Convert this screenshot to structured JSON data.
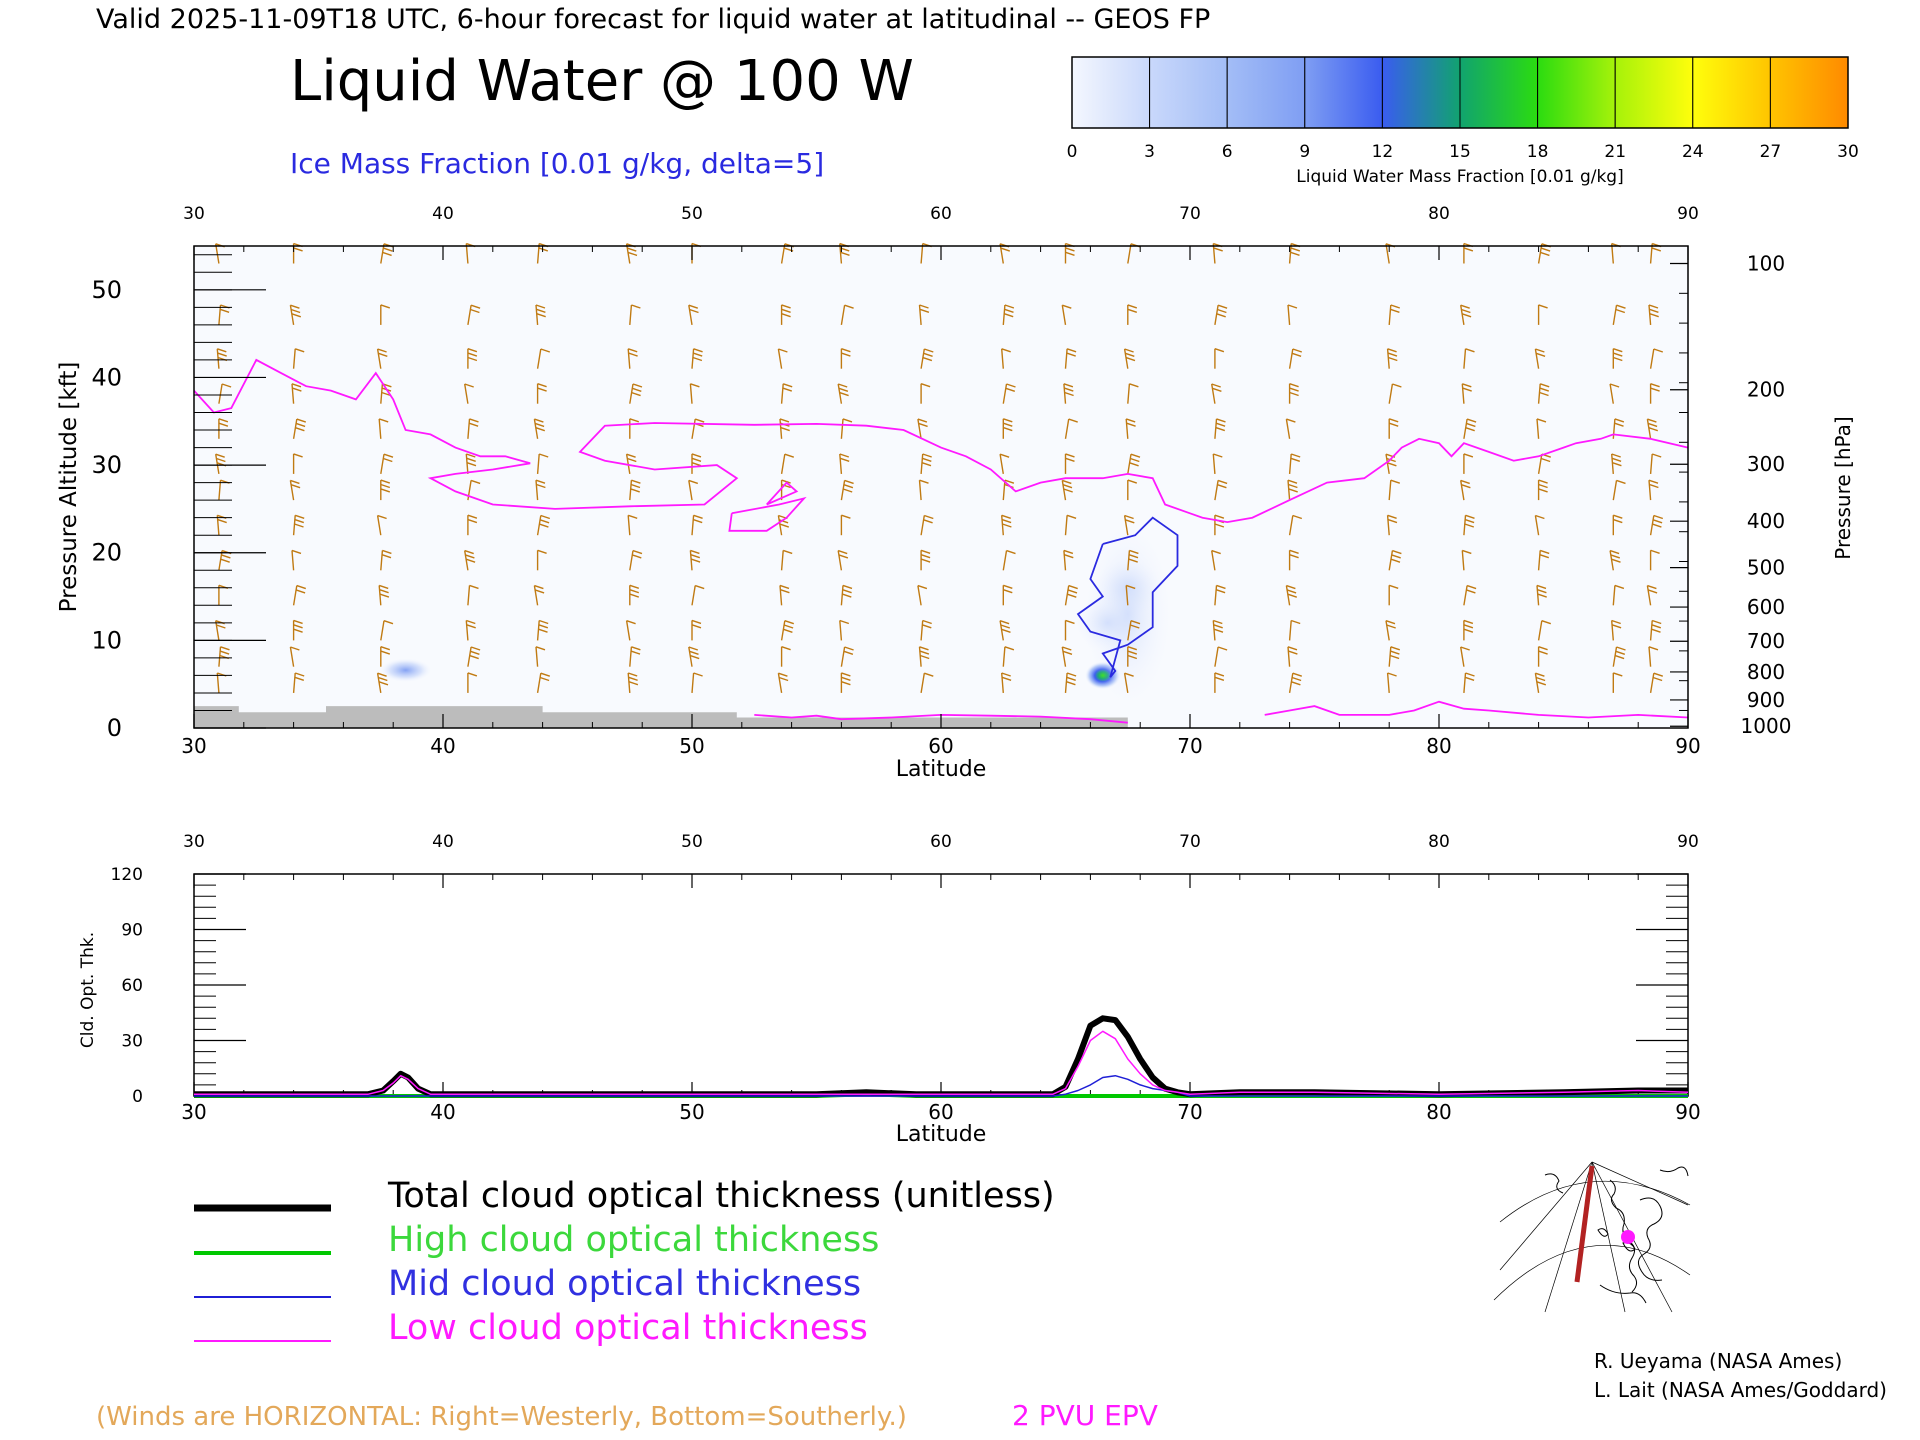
{
  "header": {
    "valid_line": "Valid 2025-11-09T18 UTC, 6-hour forecast for liquid water at latitudinal -- GEOS FP",
    "main_title": "Liquid Water @ 100 W",
    "ice_label": "Ice Mass Fraction [0.01 g/kg, delta=5]"
  },
  "colorbar": {
    "ticks": [
      "0",
      "3",
      "6",
      "9",
      "12",
      "15",
      "18",
      "21",
      "24",
      "27",
      "30"
    ],
    "label": "Liquid Water Mass Fraction [0.01 g/kg]",
    "colors": [
      "#f4f7fe",
      "#c9d8fb",
      "#a3bdf6",
      "#7f9ef3",
      "#3a5cf0",
      "#11a36f",
      "#2bdc10",
      "#a6f20a",
      "#fffe0c",
      "#ffc400",
      "#ff8a00",
      "#ff3a00"
    ]
  },
  "colors": {
    "wind_barb": "#c07a12",
    "epv": "#ff19ff",
    "ice": "#2a2ae0",
    "total": "#000000",
    "high": "#00c800",
    "mid": "#1f1fd6",
    "low": "#ff19ff",
    "terrain": "#bcbcbc",
    "liquid_field": "#b7c9f7"
  },
  "chart_data": [
    {
      "type": "heatmap",
      "name": "latitude-pressure cross section",
      "xlabel": "Latitude",
      "ylabel": "Pressure Altitude [kft]",
      "y2label": "Pressure [hPa]",
      "xlim": [
        30,
        90
      ],
      "ylim": [
        0,
        55
      ],
      "x_ticks": [
        "30",
        "40",
        "50",
        "60",
        "70",
        "80",
        "90"
      ],
      "y_ticks": [
        "0",
        "10",
        "20",
        "30",
        "40",
        "50"
      ],
      "pressure_ticks": [
        {
          "label": "100",
          "kft": 53.0
        },
        {
          "label": "200",
          "kft": 38.6
        },
        {
          "label": "300",
          "kft": 30.1
        },
        {
          "label": "400",
          "kft": 23.6
        },
        {
          "label": "500",
          "kft": 18.3
        },
        {
          "label": "600",
          "kft": 13.8
        },
        {
          "label": "700",
          "kft": 9.9
        },
        {
          "label": "800",
          "kft": 6.4
        },
        {
          "label": "900",
          "kft": 3.2
        },
        {
          "label": "1000",
          "kft": 0.2
        }
      ],
      "epv_2pvu": [
        [
          30,
          38.5
        ],
        [
          30.8,
          36
        ],
        [
          31.5,
          36.5
        ],
        [
          32.5,
          42
        ],
        [
          33.5,
          40.5
        ],
        [
          34.5,
          39
        ],
        [
          35.5,
          38.5
        ],
        [
          36.5,
          37.5
        ],
        [
          37.3,
          40.5
        ],
        [
          38,
          37.5
        ],
        [
          38.5,
          34
        ],
        [
          39.5,
          33.5
        ],
        [
          40.5,
          32
        ],
        [
          41.5,
          31
        ],
        [
          42.5,
          31
        ],
        [
          43.5,
          30.2
        ],
        [
          42,
          29.5
        ],
        [
          40.5,
          29
        ],
        [
          39.5,
          28.5
        ],
        [
          40.5,
          27
        ],
        [
          42,
          25.5
        ],
        [
          44.5,
          25
        ],
        [
          47.5,
          25.3
        ],
        [
          50.5,
          25.5
        ],
        [
          51.8,
          28.5
        ],
        [
          51,
          30
        ],
        [
          48.5,
          29.5
        ],
        [
          46.5,
          30.5
        ],
        [
          45.5,
          31.5
        ],
        [
          46.5,
          34.5
        ],
        [
          48.5,
          34.8
        ],
        [
          52.5,
          34.6
        ],
        [
          55,
          34.7
        ],
        [
          57,
          34.5
        ],
        [
          58.5,
          34
        ],
        [
          60,
          32
        ],
        [
          61,
          31
        ],
        [
          62,
          29.5
        ],
        [
          63,
          27
        ],
        [
          64,
          28
        ],
        [
          65,
          28.5
        ],
        [
          66.5,
          28.5
        ],
        [
          67.5,
          29
        ],
        [
          68.5,
          28.5
        ],
        [
          69,
          25.5
        ],
        [
          70,
          24.5
        ],
        [
          70.5,
          24
        ],
        [
          71.5,
          23.5
        ],
        [
          72.5,
          24
        ],
        [
          74,
          26
        ],
        [
          75.5,
          28
        ],
        [
          77,
          28.5
        ],
        [
          78,
          30.5
        ],
        [
          78.5,
          32
        ],
        [
          79.2,
          33
        ],
        [
          80,
          32.5
        ],
        [
          80.5,
          31
        ],
        [
          81,
          32.5
        ],
        [
          82,
          31.5
        ],
        [
          83,
          30.5
        ],
        [
          84,
          31
        ],
        [
          85,
          32
        ],
        [
          85.5,
          32.5
        ],
        [
          86.5,
          33
        ],
        [
          87,
          33.5
        ],
        [
          88.5,
          33
        ],
        [
          90,
          32
        ]
      ],
      "epv_small_loops": [
        [
          [
            51.6,
            24.5
          ],
          [
            53.5,
            25.5
          ],
          [
            54.5,
            26.2
          ],
          [
            53.8,
            24
          ],
          [
            53,
            22.5
          ],
          [
            51.5,
            22.5
          ],
          [
            51.6,
            24.5
          ]
        ],
        [
          [
            53,
            25.5
          ],
          [
            54.2,
            27
          ],
          [
            53.8,
            28
          ],
          [
            53,
            25.5
          ]
        ]
      ],
      "epv_near_surface": [
        [
          52.5,
          1.5
        ],
        [
          54,
          1.2
        ],
        [
          55,
          1.4
        ],
        [
          56,
          1.0
        ],
        [
          58,
          1.2
        ],
        [
          60,
          1.5
        ],
        [
          62,
          1.4
        ],
        [
          64,
          1.3
        ],
        [
          66,
          1.0
        ],
        [
          67.5,
          0.6
        ]
      ],
      "epv_surface_tail": [
        [
          73,
          1.5
        ],
        [
          74,
          2
        ],
        [
          75,
          2.5
        ],
        [
          76,
          1.5
        ],
        [
          78,
          1.5
        ],
        [
          79,
          2
        ],
        [
          80,
          3
        ],
        [
          81,
          2.2
        ],
        [
          82,
          2
        ],
        [
          84,
          1.5
        ],
        [
          86,
          1.2
        ],
        [
          88,
          1.5
        ],
        [
          90,
          1.2
        ]
      ],
      "ice_contour_5": [
        [
          66.5,
          21
        ],
        [
          67.8,
          22
        ],
        [
          68.5,
          24
        ],
        [
          69.5,
          22
        ],
        [
          69.5,
          18.5
        ],
        [
          68.5,
          15.5
        ],
        [
          68.5,
          11.5
        ],
        [
          67.5,
          9.5
        ],
        [
          66.5,
          8.5
        ],
        [
          67,
          6.5
        ],
        [
          66.8,
          5.8
        ],
        [
          67.2,
          10
        ],
        [
          66,
          11
        ],
        [
          65.5,
          13
        ],
        [
          66.5,
          15
        ],
        [
          66,
          17
        ],
        [
          66.5,
          21
        ]
      ],
      "liquid_blobs": [
        {
          "lat": 38.5,
          "kft": 6.6,
          "value": 5
        },
        {
          "lat": 66.5,
          "kft": 6.0,
          "value": 12
        },
        {
          "lat": 66.7,
          "kft": 12,
          "value": 3
        },
        {
          "lat": 67.5,
          "kft": 16,
          "value": 2
        }
      ],
      "terrain_kft": [
        [
          30,
          2.5
        ],
        [
          31.8,
          2.5
        ],
        [
          31.8,
          1.8
        ],
        [
          35.3,
          1.8
        ],
        [
          35.3,
          2.5
        ],
        [
          44,
          2.5
        ],
        [
          44,
          1.8
        ],
        [
          51.8,
          1.8
        ],
        [
          51.8,
          1.2
        ],
        [
          67.5,
          1.2
        ],
        [
          67.5,
          0
        ],
        [
          30,
          0
        ]
      ],
      "wind_barbs_lat": [
        31,
        34,
        37.5,
        41,
        43.8,
        47.5,
        50,
        53.6,
        56,
        59.2,
        62.5,
        65,
        67.5,
        71,
        74,
        78,
        81,
        84,
        87,
        88.5
      ],
      "wind_barbs_kft": [
        53,
        46,
        41,
        37,
        33,
        29,
        26,
        22,
        18,
        14,
        10,
        7,
        4
      ]
    },
    {
      "type": "line",
      "name": "cloud optical thickness",
      "xlabel": "Latitude",
      "ylabel": "Cld. Opt. Thk.",
      "xlim": [
        30,
        90
      ],
      "ylim": [
        0,
        120
      ],
      "x_ticks": [
        "30",
        "40",
        "50",
        "60",
        "70",
        "80",
        "90"
      ],
      "y_ticks": [
        "0",
        "30",
        "60",
        "90",
        "120"
      ],
      "series": [
        {
          "name": "Total cloud optical thickness (unitless)",
          "color": "#000000",
          "width": 6,
          "x": [
            30,
            37,
            37.6,
            38,
            38.3,
            38.6,
            39,
            39.5,
            40,
            55,
            57,
            59,
            64.5,
            65,
            65.5,
            66,
            66.5,
            67,
            67.5,
            68,
            68.5,
            69,
            69.5,
            70,
            72,
            75,
            80,
            85,
            88,
            90
          ],
          "y": [
            1,
            1,
            3,
            8,
            12,
            10,
            4,
            1,
            1,
            1,
            2,
            1,
            1,
            5,
            20,
            38,
            42,
            41,
            32,
            20,
            10,
            4,
            2,
            1,
            2,
            2,
            1,
            2,
            3,
            3
          ]
        },
        {
          "name": "High cloud optical thickness",
          "color": "#00c800",
          "width": 4,
          "x": [
            30,
            40,
            50,
            55,
            57,
            59,
            60,
            70,
            80,
            90
          ],
          "y": [
            0,
            0,
            0,
            0,
            1,
            0,
            0,
            0,
            0,
            0
          ]
        },
        {
          "name": "Mid cloud optical thickness",
          "color": "#1f1fd6",
          "width": 1.5,
          "x": [
            30,
            64.5,
            65,
            65.5,
            66,
            66.5,
            67,
            67.5,
            68,
            68.5,
            69.5,
            70,
            90
          ],
          "y": [
            0,
            0,
            1,
            3,
            6,
            10,
            11,
            9,
            6,
            4,
            2,
            0,
            0
          ]
        },
        {
          "name": "Low cloud optical thickness",
          "color": "#ff19ff",
          "width": 1.5,
          "x": [
            30,
            37,
            37.6,
            38,
            38.3,
            38.6,
            39,
            39.5,
            40,
            64.5,
            65,
            65.5,
            66,
            66.5,
            67,
            67.5,
            68,
            68.5,
            69,
            69.5,
            70,
            72,
            75,
            80,
            85,
            88,
            90
          ],
          "y": [
            1,
            1,
            3,
            7,
            11,
            9,
            4,
            1,
            1,
            1,
            4,
            16,
            30,
            35,
            31,
            20,
            12,
            6,
            3,
            2,
            1,
            2,
            2,
            1,
            2,
            3,
            2
          ]
        }
      ]
    }
  ],
  "legend": {
    "total": "Total cloud optical thickness (unitless)",
    "high": "High cloud optical thickness",
    "mid": "Mid cloud optical thickness",
    "low": "Low cloud optical thickness"
  },
  "footer": {
    "winds_note": "(Winds are HORIZONTAL: Right=Westerly, Bottom=Southerly.)",
    "epv_note": "2 PVU EPV",
    "credit1": "R. Ueyama (NASA Ames)",
    "credit2": "L. Lait (NASA Ames/Goddard)"
  },
  "inset_map": {
    "line_color": "#b22222",
    "dot_color": "#ff19ff"
  }
}
